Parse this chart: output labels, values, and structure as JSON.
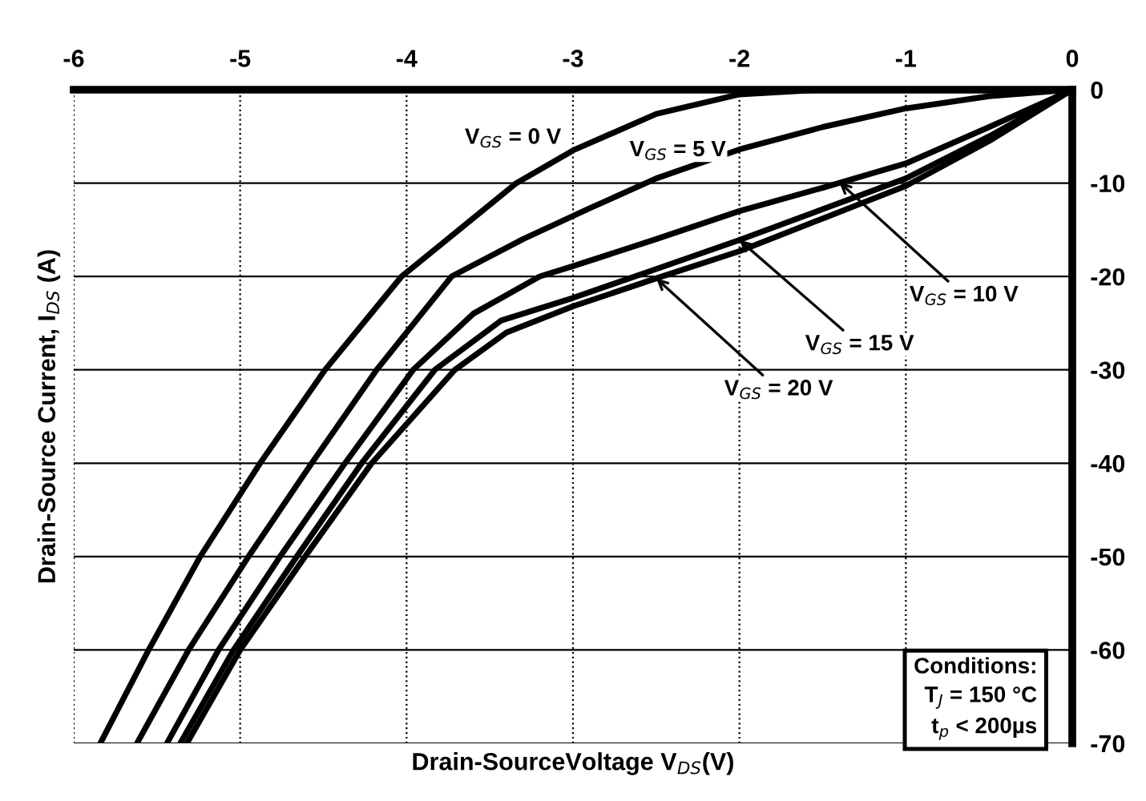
{
  "chart_data": {
    "type": "line",
    "xlabel": "Drain-SourceVoltage V$_{DS}$(V)",
    "ylabel": "Drain-Source Current, I$_{DS}$ (A)",
    "xlim": [
      -6,
      0
    ],
    "xticks": [
      -6,
      -5,
      -4,
      -3,
      -2,
      -1,
      0
    ],
    "ylim": [
      -70,
      0
    ],
    "yticks": [
      0,
      -10,
      -20,
      -30,
      -40,
      -50,
      -60,
      -70
    ],
    "grid": true,
    "legend": false,
    "line_style": "solid",
    "marker": "none",
    "series": [
      {
        "color": "#000000",
        "x": [
          -5.84,
          -5.55,
          -5.24,
          -4.88,
          -4.49,
          -4.03,
          -3.34,
          -3.0,
          -2.5,
          -2.0,
          -1.5,
          -1.0,
          0
        ],
        "values": [
          -70,
          -60,
          -50,
          -40,
          -30,
          -20,
          -10,
          -6.5,
          -2.6,
          -0.5,
          0,
          0,
          0
        ]
      },
      {
        "color": "#000000",
        "x": [
          -5.62,
          -5.31,
          -4.95,
          -4.57,
          -4.18,
          -3.73,
          -3.3,
          -2.9,
          -2.5,
          -2.0,
          -1.5,
          -1.0,
          -0.5,
          0
        ],
        "values": [
          -70,
          -60,
          -50,
          -40,
          -30,
          -20,
          -16,
          -12.7,
          -9.5,
          -6.4,
          -4.0,
          -2.0,
          -0.7,
          0
        ]
      },
      {
        "color": "#000000",
        "x": [
          -5.44,
          -5.13,
          -4.76,
          -4.37,
          -3.96,
          -3.6,
          -3.2,
          -3.0,
          -2.5,
          -2.0,
          -1.5,
          -1.0,
          -0.5,
          0
        ],
        "values": [
          -70,
          -60,
          -50,
          -40,
          -30,
          -24,
          -20,
          -18.9,
          -16,
          -13,
          -10.5,
          -7.9,
          -4,
          0
        ]
      },
      {
        "color": "#000000",
        "x": [
          -5.36,
          -5.04,
          -4.66,
          -4.27,
          -3.83,
          -3.43,
          -3.0,
          -2.5,
          -2.0,
          -1.5,
          -1.0,
          -0.5,
          0
        ],
        "values": [
          -70,
          -60,
          -50,
          -40,
          -30,
          -24.7,
          -22.3,
          -19.2,
          -16.1,
          -12.8,
          -9.5,
          -5,
          0
        ]
      },
      {
        "color": "#000000",
        "x": [
          -5.32,
          -5.0,
          -4.61,
          -4.21,
          -3.71,
          -3.4,
          -3.0,
          -2.5,
          -2.0,
          -1.5,
          -1.0,
          -0.5,
          0
        ],
        "values": [
          -70,
          -60,
          -50,
          -40,
          -30,
          -26,
          -23.2,
          -20.2,
          -17.3,
          -13.8,
          -10.3,
          -5.5,
          0
        ]
      }
    ],
    "annotations": [
      "V$_{GS}$ = 0 V",
      "V$_{GS}$ = 5 V",
      {
        "text": "V$_{GS}$ = 10 V",
        "x": -1.4,
        "y": -9.9
      },
      {
        "text": "V$_{GS}$ = 15 V",
        "x": -2.0,
        "y": -16.1
      },
      {
        "text": "V$_{GS}$ = 20 V",
        "x": -2.5,
        "y": -20.2
      },
      "Conditions:\nT$_{J}$ = 150 °C\nt$_{p}$ < 200µs"
    ]
  }
}
